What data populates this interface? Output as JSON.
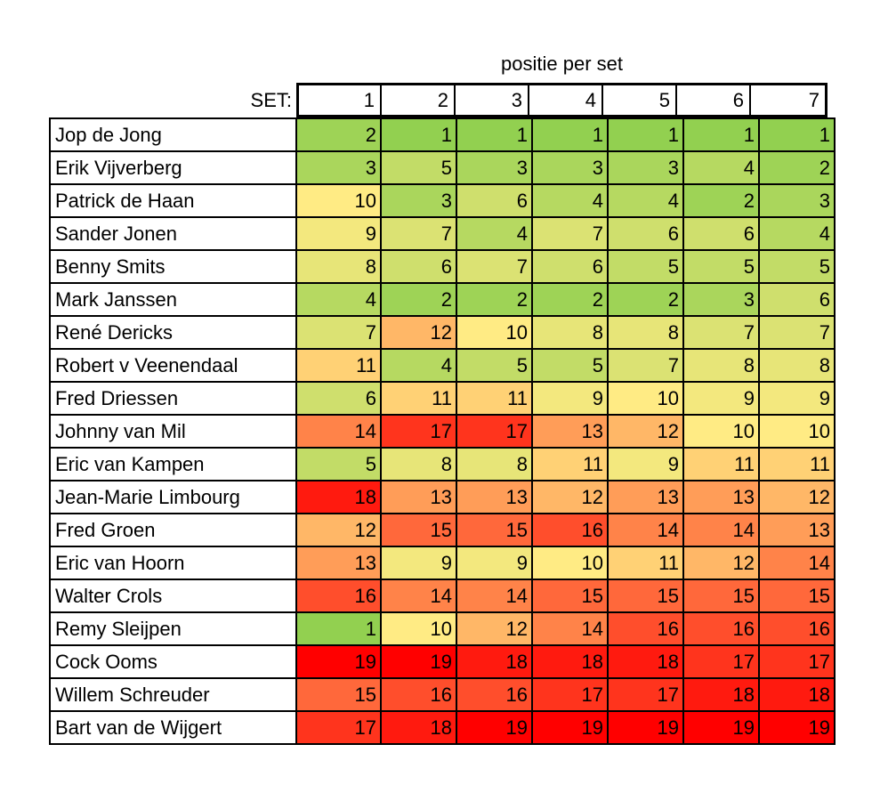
{
  "chart_data": {
    "type": "table",
    "title": "positie per set",
    "set_label": "SET:",
    "columns": [
      "1",
      "2",
      "3",
      "4",
      "5",
      "6",
      "7"
    ],
    "rows": [
      {
        "name": "Jop de Jong",
        "values": [
          2,
          1,
          1,
          1,
          1,
          1,
          1
        ]
      },
      {
        "name": "Erik Vijverberg",
        "values": [
          3,
          5,
          3,
          3,
          3,
          4,
          2
        ]
      },
      {
        "name": "Patrick de Haan",
        "values": [
          10,
          3,
          6,
          4,
          4,
          2,
          3
        ]
      },
      {
        "name": "Sander Jonen",
        "values": [
          9,
          7,
          4,
          7,
          6,
          6,
          4
        ]
      },
      {
        "name": "Benny Smits",
        "values": [
          8,
          6,
          7,
          6,
          5,
          5,
          5
        ]
      },
      {
        "name": "Mark Janssen",
        "values": [
          4,
          2,
          2,
          2,
          2,
          3,
          6
        ]
      },
      {
        "name": "René Dericks",
        "values": [
          7,
          12,
          10,
          8,
          8,
          7,
          7
        ]
      },
      {
        "name": "Robert v Veenendaal",
        "values": [
          11,
          4,
          5,
          5,
          7,
          8,
          8
        ]
      },
      {
        "name": "Fred Driessen",
        "values": [
          6,
          11,
          11,
          9,
          10,
          9,
          9
        ]
      },
      {
        "name": "Johnny van Mil",
        "values": [
          14,
          17,
          17,
          13,
          12,
          10,
          10
        ]
      },
      {
        "name": "Eric van Kampen",
        "values": [
          5,
          8,
          8,
          11,
          9,
          11,
          11
        ]
      },
      {
        "name": "Jean-Marie Limbourg",
        "values": [
          18,
          13,
          13,
          12,
          13,
          13,
          12
        ]
      },
      {
        "name": "Fred Groen",
        "values": [
          12,
          15,
          15,
          16,
          14,
          14,
          13
        ]
      },
      {
        "name": "Eric van Hoorn",
        "values": [
          13,
          9,
          9,
          10,
          11,
          12,
          14
        ]
      },
      {
        "name": "Walter Crols",
        "values": [
          16,
          14,
          14,
          15,
          15,
          15,
          15
        ]
      },
      {
        "name": "Remy Sleijpen",
        "values": [
          1,
          10,
          12,
          14,
          16,
          16,
          16
        ]
      },
      {
        "name": "Cock Ooms",
        "values": [
          19,
          19,
          18,
          18,
          18,
          17,
          17
        ]
      },
      {
        "name": "Willem Schreuder",
        "values": [
          15,
          16,
          16,
          17,
          17,
          18,
          18
        ]
      },
      {
        "name": "Bart van de Wijgert",
        "values": [
          17,
          18,
          19,
          19,
          19,
          19,
          19
        ]
      }
    ],
    "color_scale": {
      "low": "#92d050",
      "mid": "#ffeb84",
      "high": "#ff0000"
    }
  }
}
